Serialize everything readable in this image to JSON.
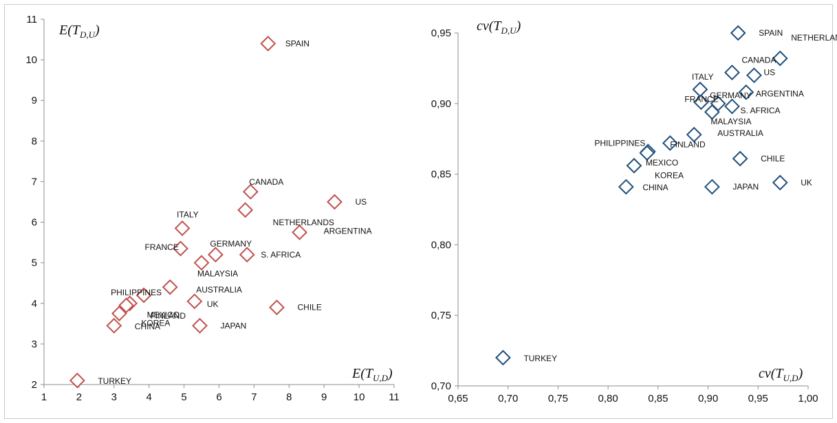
{
  "chart_data": [
    {
      "type": "scatter",
      "xlim": [
        1,
        11
      ],
      "ylim": [
        2,
        11
      ],
      "x_ticks": [
        "1",
        "2",
        "3",
        "4",
        "5",
        "6",
        "7",
        "8",
        "9",
        "10",
        "11"
      ],
      "y_ticks": [
        "2",
        "3",
        "4",
        "5",
        "6",
        "7",
        "8",
        "9",
        "10",
        "11"
      ],
      "xlabel": {
        "main": "E(T",
        "sub": "U,D",
        "close": ")"
      },
      "ylabel": {
        "main": "E(T",
        "sub": "D,U",
        "close": ")"
      },
      "grid": false,
      "marker": "diamond",
      "color": "#c0504d",
      "points": [
        {
          "label": "SPAIN",
          "x": 7.4,
          "y": 10.4
        },
        {
          "label": "CANADA",
          "x": 6.9,
          "y": 6.75
        },
        {
          "label": "US",
          "x": 9.3,
          "y": 6.5
        },
        {
          "label": "NETHERLANDS",
          "x": 6.75,
          "y": 6.3
        },
        {
          "label": "ITALY",
          "x": 4.95,
          "y": 5.85
        },
        {
          "label": "ARGENTINA",
          "x": 8.3,
          "y": 5.75
        },
        {
          "label": "FRANCE",
          "x": 4.9,
          "y": 5.35
        },
        {
          "label": "GERMANY",
          "x": 5.9,
          "y": 5.2
        },
        {
          "label": "S. AFRICA",
          "x": 6.8,
          "y": 5.2
        },
        {
          "label": "MALAYSIA",
          "x": 5.5,
          "y": 5.0
        },
        {
          "label": "AUSTRALIA",
          "x": 4.6,
          "y": 4.4
        },
        {
          "label": "PHILIPPINES",
          "x": 3.85,
          "y": 4.2
        },
        {
          "label": "FINLAND",
          "x": 3.45,
          "y": 4.0
        },
        {
          "label": "MEXICO",
          "x": 3.35,
          "y": 3.95
        },
        {
          "label": "UK",
          "x": 5.3,
          "y": 4.05
        },
        {
          "label": "CHILE",
          "x": 7.65,
          "y": 3.9
        },
        {
          "label": "KOREA",
          "x": 3.15,
          "y": 3.75
        },
        {
          "label": "CHINA",
          "x": 3.0,
          "y": 3.45
        },
        {
          "label": "JAPAN",
          "x": 5.45,
          "y": 3.45
        },
        {
          "label": "TURKEY",
          "x": 1.95,
          "y": 2.1
        }
      ]
    },
    {
      "type": "scatter",
      "xlim": [
        0.65,
        1.0
      ],
      "ylim": [
        0.7,
        0.95
      ],
      "x_ticks": [
        "0,65",
        "0,70",
        "0,75",
        "0,80",
        "0,85",
        "0,90",
        "0,95",
        "1,00"
      ],
      "y_ticks": [
        "0,70",
        "0,75",
        "0,80",
        "0,85",
        "0,90",
        "0,95"
      ],
      "xlabel": {
        "main": "cv(T",
        "sub": "U,D",
        "close": ")"
      },
      "ylabel": {
        "main": "cv(T",
        "sub": "D,U",
        "close": ")"
      },
      "grid": false,
      "marker": "diamond",
      "color": "#1f4e79",
      "points": [
        {
          "label": "SPAIN",
          "x": 0.93,
          "y": 0.95
        },
        {
          "label": "CANADA",
          "x": 0.924,
          "y": 0.922
        },
        {
          "label": "NETHERLANDS",
          "x": 0.972,
          "y": 0.932
        },
        {
          "label": "US",
          "x": 0.946,
          "y": 0.92
        },
        {
          "label": "ITALY",
          "x": 0.892,
          "y": 0.91
        },
        {
          "label": "ARGENTINA",
          "x": 0.938,
          "y": 0.908
        },
        {
          "label": "GERMANY",
          "x": 0.91,
          "y": 0.9
        },
        {
          "label": "FRANCE",
          "x": 0.893,
          "y": 0.901
        },
        {
          "label": "S. AFRICA",
          "x": 0.924,
          "y": 0.898
        },
        {
          "label": "MALAYSIA",
          "x": 0.904,
          "y": 0.894
        },
        {
          "label": "AUSTRALIA",
          "x": 0.886,
          "y": 0.878
        },
        {
          "label": "FINLAND",
          "x": 0.862,
          "y": 0.872
        },
        {
          "label": "PHILIPPINES",
          "x": 0.84,
          "y": 0.866
        },
        {
          "label": "MEXICO",
          "x": 0.839,
          "y": 0.865
        },
        {
          "label": "CHILE",
          "x": 0.932,
          "y": 0.861
        },
        {
          "label": "KOREA",
          "x": 0.826,
          "y": 0.856
        },
        {
          "label": "UK",
          "x": 0.972,
          "y": 0.844
        },
        {
          "label": "CHINA",
          "x": 0.818,
          "y": 0.841
        },
        {
          "label": "JAPAN",
          "x": 0.904,
          "y": 0.841
        },
        {
          "label": "TURKEY",
          "x": 0.695,
          "y": 0.72
        }
      ]
    }
  ]
}
